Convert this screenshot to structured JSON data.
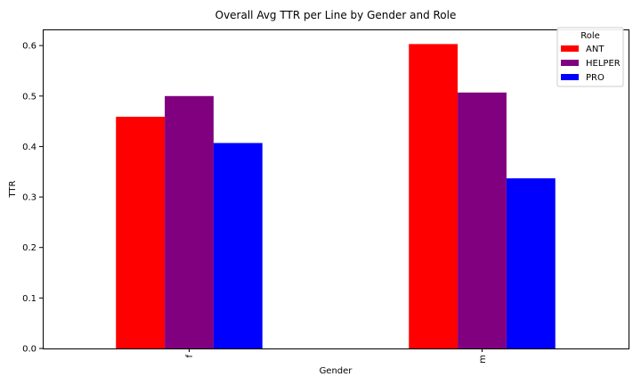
{
  "chart_data": {
    "type": "bar",
    "title": "Overall Avg TTR per Line by Gender and Role",
    "xlabel": "Gender",
    "ylabel": "TTR",
    "categories": [
      "f",
      "m"
    ],
    "series": [
      {
        "name": "ANT",
        "values": [
          0.459,
          0.603
        ],
        "color": "#ff0000"
      },
      {
        "name": "HELPER",
        "values": [
          0.5,
          0.507
        ],
        "color": "#800080"
      },
      {
        "name": "PRO",
        "values": [
          0.407,
          0.337
        ],
        "color": "#0000ff"
      }
    ],
    "ylim": [
      0,
      0.632
    ],
    "yticks": [
      0.0,
      0.1,
      0.2,
      0.3,
      0.4,
      0.5,
      0.6
    ],
    "ytick_labels": [
      "0.0",
      "0.1",
      "0.2",
      "0.3",
      "0.4",
      "0.5",
      "0.6"
    ],
    "grid": false,
    "legend": {
      "title": "Role",
      "placement": "top-right"
    }
  }
}
